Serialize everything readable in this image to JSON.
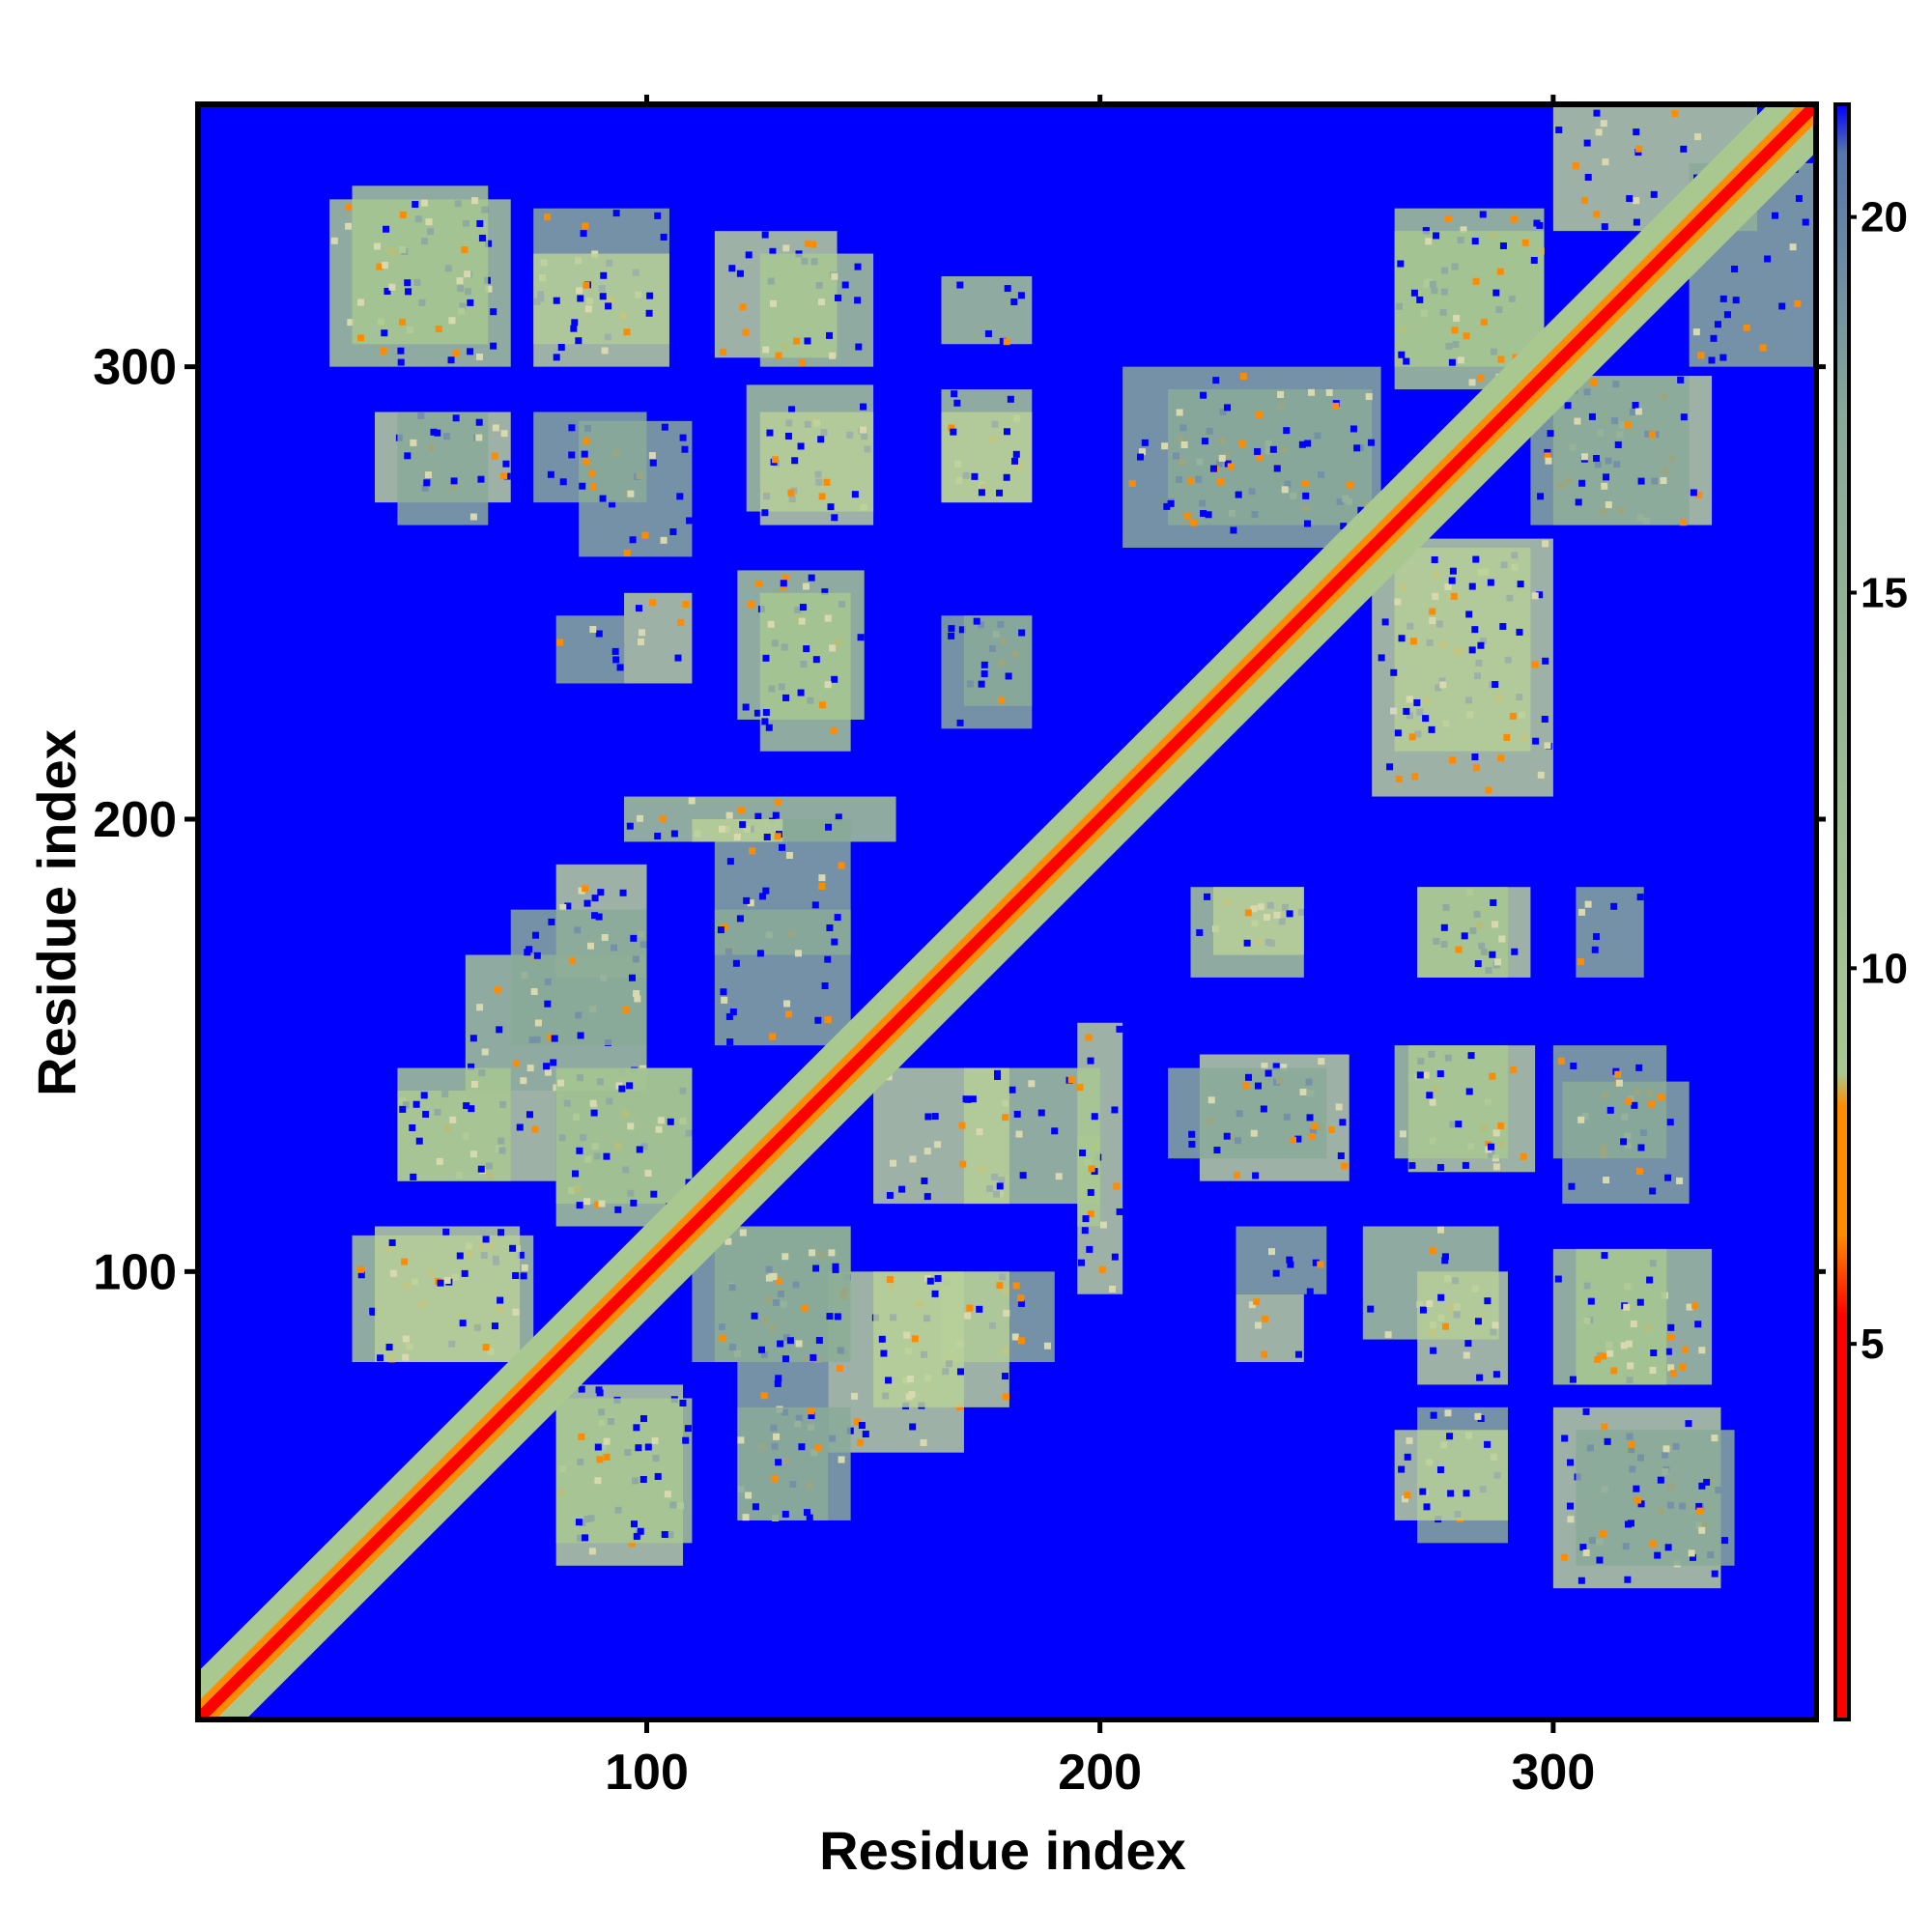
{
  "chart_data": {
    "type": "heatmap",
    "title": "",
    "xlabel": "Residue index",
    "ylabel": "Residue index",
    "xlim": [
      1,
      358
    ],
    "ylim": [
      1,
      358
    ],
    "x_ticks": [
      100,
      200,
      300
    ],
    "y_ticks": [
      100,
      200,
      300
    ],
    "colorbar": {
      "range": [
        0,
        21.5
      ],
      "ticks": [
        5,
        10,
        15,
        20
      ],
      "colors": [
        "#ff0000",
        "#ff8c00",
        "#a8c890",
        "#8aaa98",
        "#0000ff"
      ]
    },
    "background_color": "#0000ff",
    "diagonal_band": {
      "core_color": "#ff0000",
      "edge_color": "#ff8c00",
      "halo_color": "#a8c890"
    },
    "contact_regions": [
      {
        "x": [
          30,
          70
        ],
        "y": [
          300,
          337
        ]
      },
      {
        "x": [
          75,
          105
        ],
        "y": [
          305,
          335
        ]
      },
      {
        "x": [
          115,
          142
        ],
        "y": [
          302,
          330
        ]
      },
      {
        "x": [
          122,
          150
        ],
        "y": [
          268,
          296
        ]
      },
      {
        "x": [
          85,
          110
        ],
        "y": [
          258,
          288
        ]
      },
      {
        "x": [
          40,
          70
        ],
        "y": [
          270,
          290
        ]
      },
      {
        "x": [
          165,
          185
        ],
        "y": [
          270,
          295
        ]
      },
      {
        "x": [
          215,
          260
        ],
        "y": [
          265,
          295
        ]
      },
      {
        "x": [
          260,
          300
        ],
        "y": [
          205,
          262
        ]
      },
      {
        "x": [
          265,
          298
        ],
        "y": [
          300,
          335
        ]
      },
      {
        "x": [
          295,
          330
        ],
        "y": [
          265,
          298
        ]
      },
      {
        "x": [
          300,
          345
        ],
        "y": [
          330,
          358
        ]
      },
      {
        "x": [
          120,
          148
        ],
        "y": [
          222,
          255
        ]
      },
      {
        "x": [
          165,
          185
        ],
        "y": [
          220,
          245
        ]
      },
      {
        "x": [
          95,
          110
        ],
        "y": [
          230,
          250
        ]
      },
      {
        "x": [
          95,
          155
        ],
        "y": [
          195,
          205
        ]
      },
      {
        "x": [
          115,
          145
        ],
        "y": [
          170,
          200
        ]
      },
      {
        "x": [
          80,
          100
        ],
        "y": [
          165,
          190
        ]
      },
      {
        "x": [
          60,
          100
        ],
        "y": [
          140,
          170
        ]
      },
      {
        "x": [
          80,
          110
        ],
        "y": [
          115,
          145
        ]
      },
      {
        "x": [
          45,
          80
        ],
        "y": [
          120,
          140
        ]
      },
      {
        "x": [
          35,
          75
        ],
        "y": [
          80,
          108
        ]
      },
      {
        "x": [
          110,
          145
        ],
        "y": [
          80,
          110
        ]
      },
      {
        "x": [
          150,
          180
        ],
        "y": [
          70,
          100
        ]
      },
      {
        "x": [
          80,
          110
        ],
        "y": [
          40,
          72
        ]
      },
      {
        "x": [
          120,
          145
        ],
        "y": [
          45,
          70
        ]
      },
      {
        "x": [
          150,
          180
        ],
        "y": [
          115,
          145
        ]
      },
      {
        "x": [
          195,
          200
        ],
        "y": [
          110,
          130
        ]
      },
      {
        "x": [
          215,
          250
        ],
        "y": [
          125,
          145
        ]
      },
      {
        "x": [
          225,
          245
        ],
        "y": [
          170,
          185
        ]
      },
      {
        "x": [
          265,
          290
        ],
        "y": [
          125,
          150
        ]
      },
      {
        "x": [
          300,
          325
        ],
        "y": [
          125,
          150
        ]
      },
      {
        "x": [
          270,
          290
        ],
        "y": [
          75,
          100
        ]
      },
      {
        "x": [
          300,
          325
        ],
        "y": [
          75,
          105
        ]
      },
      {
        "x": [
          305,
          340
        ],
        "y": [
          35,
          65
        ]
      },
      {
        "x": [
          265,
          290
        ],
        "y": [
          45,
          65
        ]
      },
      {
        "x": [
          270,
          290
        ],
        "y": [
          165,
          185
        ]
      },
      {
        "x": [
          305,
          320
        ],
        "y": [
          165,
          185
        ]
      },
      {
        "x": [
          230,
          245
        ],
        "y": [
          80,
          95
        ]
      }
    ]
  }
}
